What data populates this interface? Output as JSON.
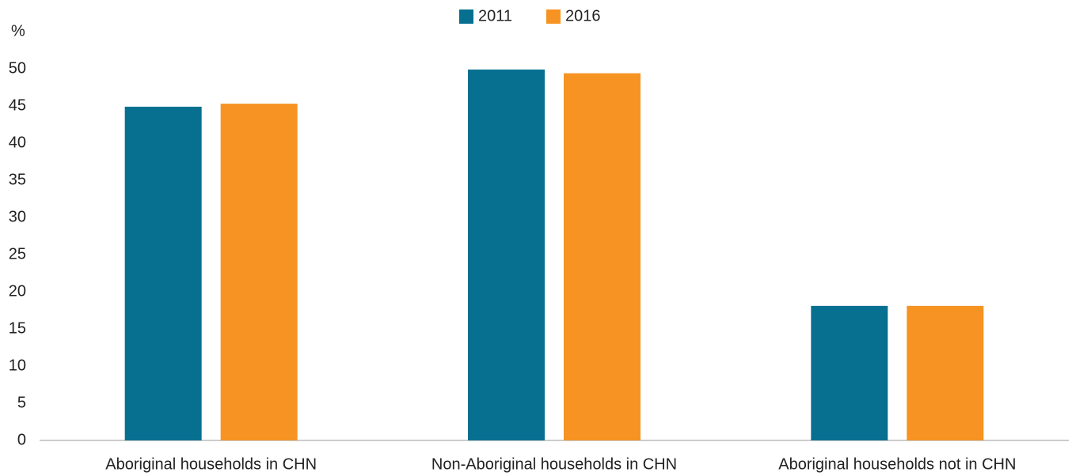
{
  "chart_data": {
    "type": "bar",
    "y_label": "%",
    "categories": [
      "Aboriginal households in CHN",
      "Non-Aboriginal households in CHN",
      "Aboriginal households not in CHN"
    ],
    "series": [
      {
        "name": "2011",
        "color": "#077090",
        "values": [
          44.9,
          49.9,
          18.1
        ]
      },
      {
        "name": "2016",
        "color": "#f69322",
        "values": [
          45.3,
          49.4,
          18.1
        ]
      }
    ],
    "ylim": [
      0,
      50
    ],
    "yticks": [
      0,
      5,
      10,
      15,
      20,
      25,
      30,
      35,
      40,
      45,
      50
    ],
    "grid": false,
    "legend": "top"
  }
}
